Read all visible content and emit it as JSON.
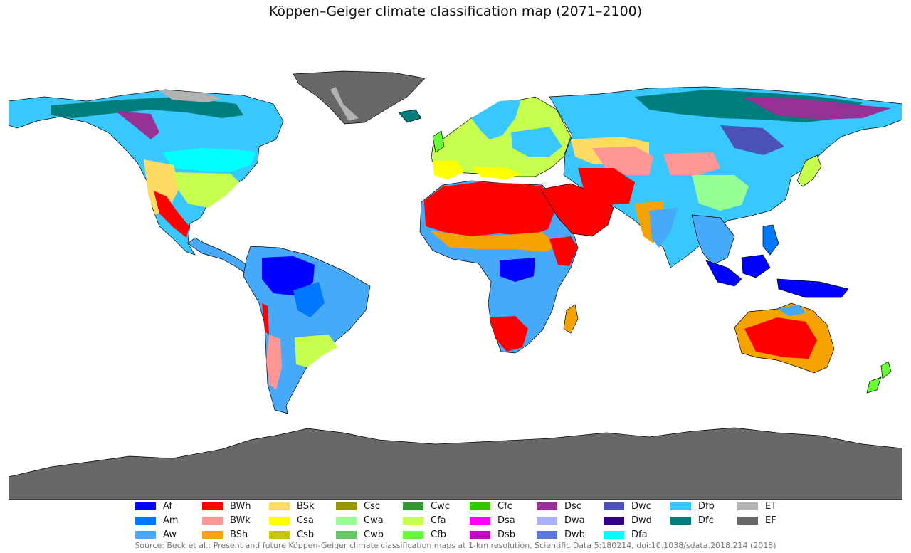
{
  "title": "Köppen–Geiger climate classification map (2071–2100)",
  "source": "Source: Beck et al.: Present and future Köppen-Geiger climate classification maps at 1-km resolution, Scientific Data 5:180214, doi:10.1038/sdata.2018.214 (2018)",
  "colors": {
    "ocean": "#ffffff",
    "border": "#000000"
  },
  "legend": [
    [
      {
        "code": "Af",
        "color": "#0000fe"
      },
      {
        "code": "Am",
        "color": "#0077ff"
      },
      {
        "code": "Aw",
        "color": "#46a9fa"
      }
    ],
    [
      {
        "code": "BWh",
        "color": "#fe0000"
      },
      {
        "code": "BWk",
        "color": "#fe9695"
      },
      {
        "code": "BSh",
        "color": "#f5a301"
      }
    ],
    [
      {
        "code": "BSk",
        "color": "#ffdb63"
      },
      {
        "code": "Csa",
        "color": "#ffff00"
      },
      {
        "code": "Csb",
        "color": "#c6c700"
      }
    ],
    [
      {
        "code": "Csc",
        "color": "#969600"
      },
      {
        "code": "Cwa",
        "color": "#96ff96"
      },
      {
        "code": "Cwb",
        "color": "#63c764"
      }
    ],
    [
      {
        "code": "Cwc",
        "color": "#329633"
      },
      {
        "code": "Cfa",
        "color": "#c6ff4e"
      },
      {
        "code": "Cfb",
        "color": "#66ff33"
      }
    ],
    [
      {
        "code": "Cfc",
        "color": "#33c701"
      },
      {
        "code": "Dsa",
        "color": "#ff00fe"
      },
      {
        "code": "Dsb",
        "color": "#c600c7"
      }
    ],
    [
      {
        "code": "Dsc",
        "color": "#963295"
      },
      {
        "code": "Dwa",
        "color": "#abb1ff"
      },
      {
        "code": "Dwb",
        "color": "#5a77db"
      }
    ],
    [
      {
        "code": "Dwc",
        "color": "#4c51b5"
      },
      {
        "code": "Dwd",
        "color": "#320087"
      },
      {
        "code": "Dfa",
        "color": "#00ffff"
      }
    ],
    [
      {
        "code": "Dfb",
        "color": "#38c7ff"
      },
      {
        "code": "Dfc",
        "color": "#007e7d"
      }
    ],
    [
      {
        "code": "ET",
        "color": "#b2b2b2"
      },
      {
        "code": "EF",
        "color": "#686868"
      }
    ]
  ]
}
